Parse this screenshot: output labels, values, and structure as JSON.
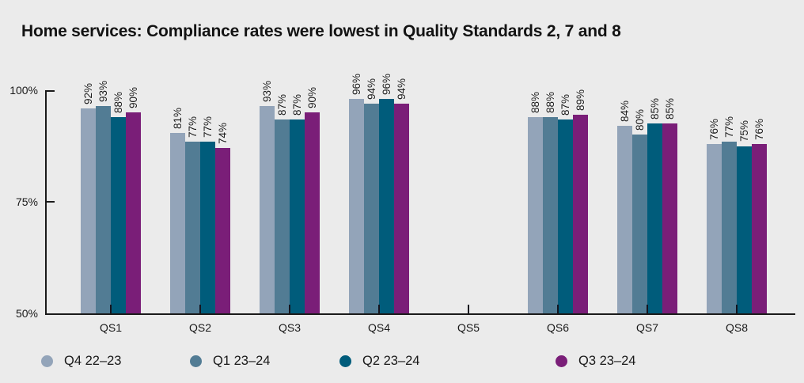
{
  "chart_data": {
    "type": "bar",
    "title": "Home services: Compliance rates were lowest in Quality Standards 2, 7 and 8",
    "categories": [
      "QS1",
      "QS2",
      "QS3",
      "QS4",
      "QS5",
      "QS6",
      "QS7",
      "QS8"
    ],
    "series": [
      {
        "name": "Q4 22–23",
        "color": "#93a4b9",
        "values": [
          92,
          81,
          93,
          96,
          null,
          88,
          84,
          76
        ]
      },
      {
        "name": "Q1 23–24",
        "color": "#527c94",
        "values": [
          93,
          77,
          87,
          94,
          null,
          88,
          80,
          77
        ]
      },
      {
        "name": "Q2 23–24",
        "color": "#005c7b",
        "values": [
          88,
          77,
          87,
          96,
          null,
          87,
          85,
          75
        ]
      },
      {
        "name": "Q3 23–24",
        "color": "#7a1e78",
        "values": [
          90,
          74,
          90,
          94,
          null,
          89,
          85,
          76
        ]
      }
    ],
    "xlabel": "",
    "ylabel": "",
    "y_ticks": [
      {
        "label": "100%",
        "pos": 0
      },
      {
        "label": "75%",
        "pos": 0.5
      },
      {
        "label": "50%",
        "pos": 1
      }
    ],
    "ylim_display": [
      50,
      100
    ],
    "bar_label_suffix": "%",
    "legend_position": "bottom",
    "grid": false
  },
  "style": {
    "background": "#ebebeb",
    "axis_color": "#1a1a1a",
    "text_color": "#1a1a1a"
  }
}
